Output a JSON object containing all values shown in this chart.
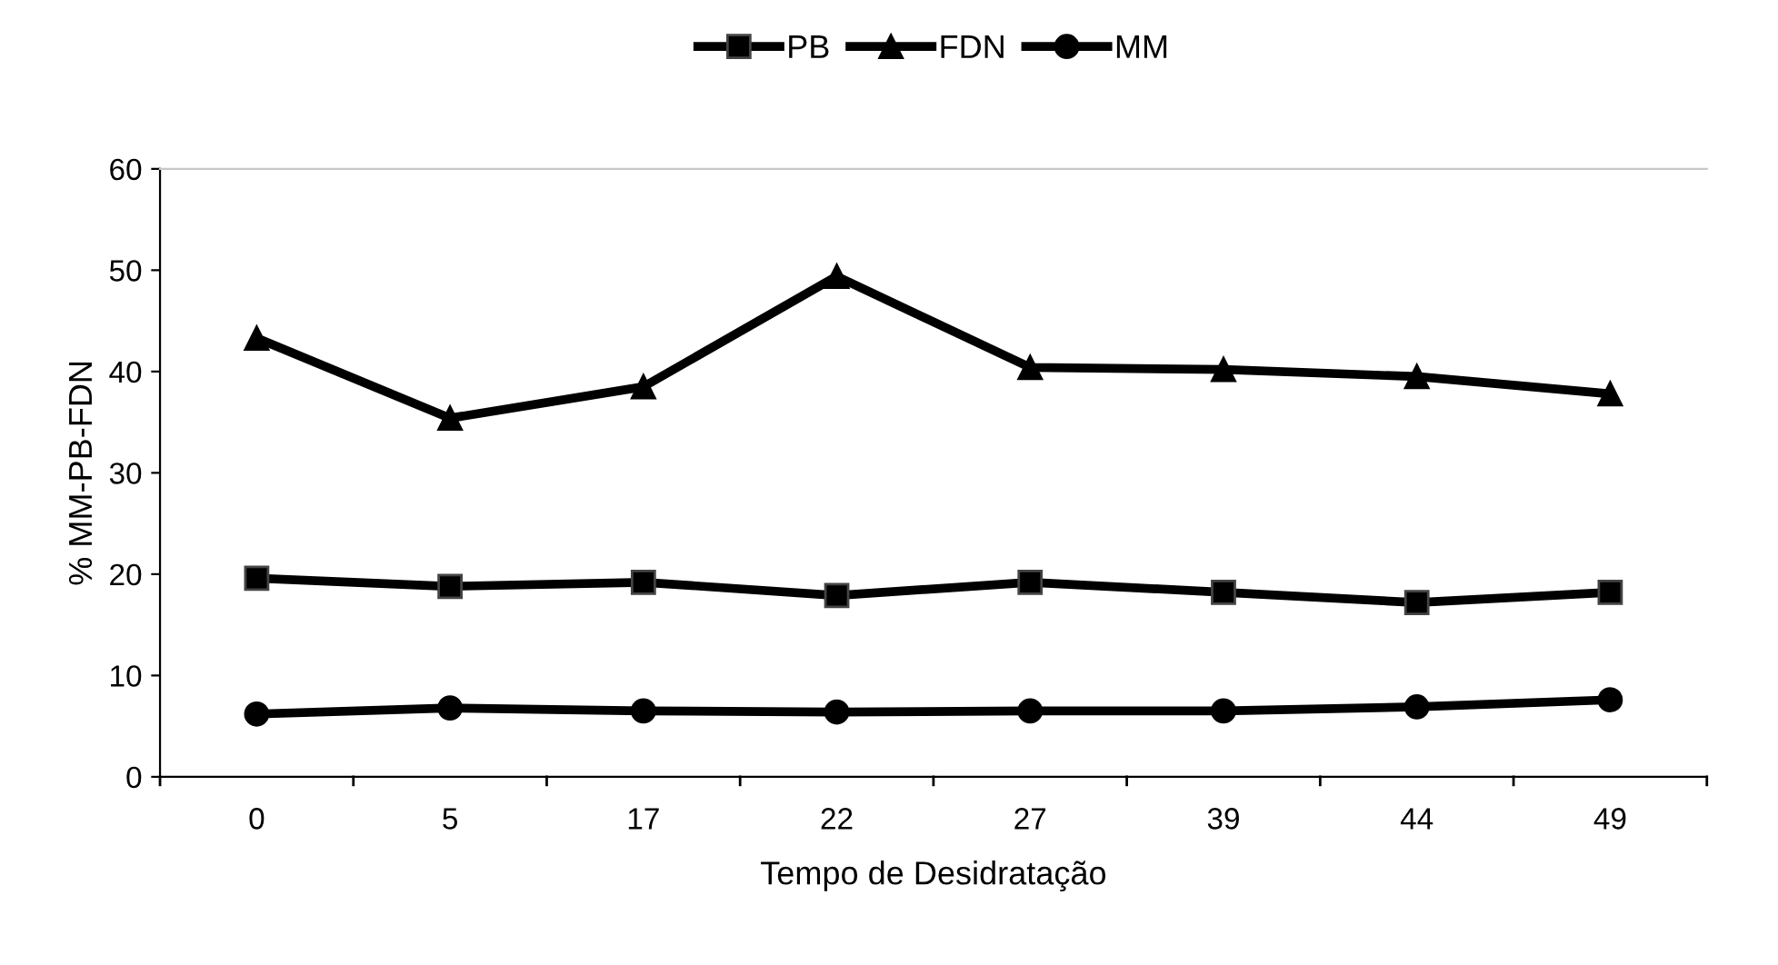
{
  "chart_data": {
    "type": "line",
    "xlabel": "Tempo de Desidratação",
    "ylabel": "% MM-PB-FDN",
    "categories": [
      "0",
      "5",
      "17",
      "22",
      "27",
      "39",
      "44",
      "49"
    ],
    "series": [
      {
        "name": "PB",
        "color": "#000000",
        "marker": "square",
        "values": [
          19.6,
          18.8,
          19.2,
          17.9,
          19.2,
          18.2,
          17.2,
          18.2
        ]
      },
      {
        "name": "FDN",
        "color": "#000000",
        "marker": "triangle",
        "values": [
          43.3,
          35.4,
          38.5,
          49.4,
          40.4,
          40.2,
          39.5,
          37.8
        ]
      },
      {
        "name": "MM",
        "color": "#000000",
        "marker": "circle",
        "values": [
          6.2,
          6.8,
          6.5,
          6.4,
          6.5,
          6.5,
          6.9,
          7.6
        ]
      }
    ],
    "ylim": [
      0,
      60
    ],
    "yticks": [
      0,
      10,
      20,
      30,
      40,
      50,
      60
    ],
    "grid": false,
    "legend": "top",
    "line_style": "solid"
  }
}
